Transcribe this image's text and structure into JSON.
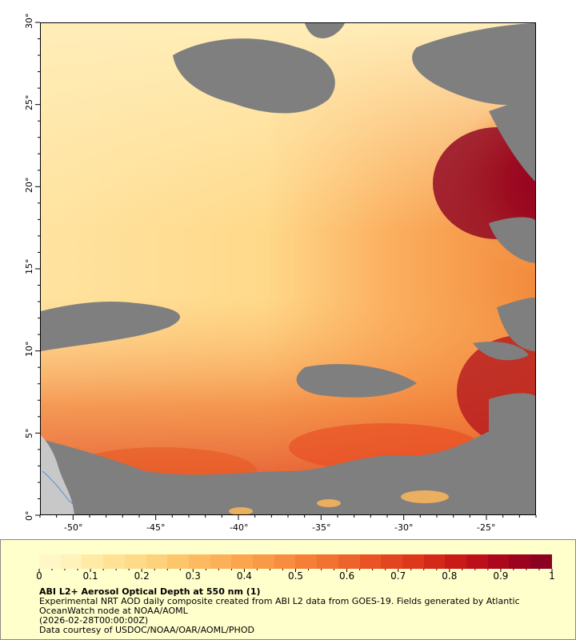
{
  "map": {
    "lat_labels": [
      "0°",
      "5°",
      "10°",
      "15°",
      "20°",
      "25°",
      "30°"
    ],
    "lon_labels": [
      "-50°",
      "-45°",
      "-40°",
      "-35°",
      "-30°",
      "-25°"
    ],
    "lon_range": [
      -52,
      -22
    ],
    "lat_range": [
      0,
      30
    ],
    "colors": {
      "no_data": "#7f7f7f",
      "land": "#c8c8c8",
      "river": "#4f8fd8",
      "low": "#fff3b0",
      "mid": "#fdb75a",
      "high": "#e8321c",
      "max": "#8c0020"
    }
  },
  "colorbar": {
    "ticks": [
      "0",
      "0.1",
      "0.2",
      "0.3",
      "0.4",
      "0.5",
      "0.6",
      "0.7",
      "0.8",
      "0.9",
      "1"
    ],
    "colors": [
      "#fff7c8",
      "#fff2bb",
      "#ffeaa6",
      "#ffe296",
      "#ffda88",
      "#fed27c",
      "#fec66c",
      "#fdba60",
      "#fcb058",
      "#fba54f",
      "#f99a46",
      "#f88d3f",
      "#f57f37",
      "#f27232",
      "#ee632c",
      "#e95326",
      "#e44521",
      "#dd371c",
      "#d42819",
      "#c91a18",
      "#bc0f1a",
      "#ac071c",
      "#9b021e",
      "#8c0021"
    ]
  },
  "legend": {
    "title": "ABI L2+ Aerosol Optical Depth at 550 nm (1)",
    "line1": "Experimental NRT AOD daily composite created from ABI L2 data from GOES-19. Fields generated by Atlantic",
    "line2": "OceanWatch node at NOAA/AOML",
    "line3": "(2026-02-28T00:00:00Z)",
    "line4": "Data courtesy of USDOC/NOAA/OAR/AOML/PHOD"
  }
}
